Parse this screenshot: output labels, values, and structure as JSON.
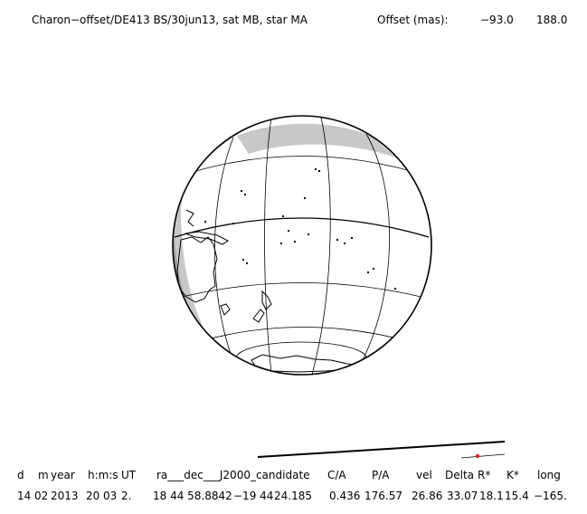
{
  "header": {
    "title": "Charon−offset/DE413 BS/30jun13, sat MB, star MA",
    "offset_label": "Offset (mas):",
    "offset_x": "−93.0",
    "offset_y": "188.0"
  },
  "colors": {
    "ink": "#000000",
    "night_shade": "#c8c8c8",
    "dark_shade": "#a0a0a0",
    "star_marker": "#e0201a"
  },
  "table": {
    "headers": [
      "d",
      "m",
      "year",
      "h:m:s",
      "UT",
      "ra___dec___J2000_candidate",
      "C/A",
      "P/A",
      "vel",
      "Delta",
      "R*",
      "K*",
      "long"
    ],
    "values": [
      "14",
      "02",
      "2013",
      "20",
      "03",
      "2.",
      "18 44 58.8842",
      "−19 44",
      "24.185",
      "0.436",
      "176.57",
      "26.86",
      "33.07",
      "18.1",
      "15.4",
      "−165."
    ]
  }
}
